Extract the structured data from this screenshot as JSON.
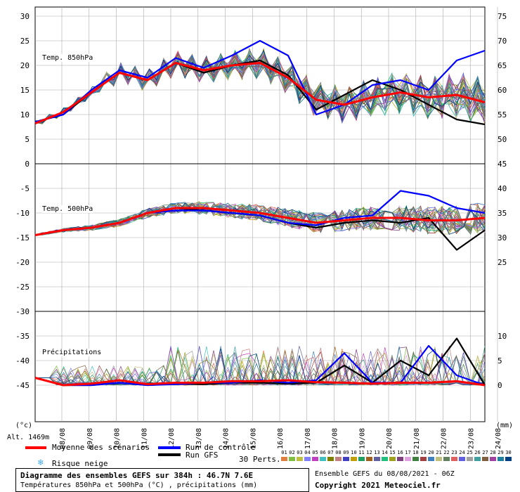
{
  "colors": {
    "mean": "#ff0000",
    "control": "#0000ff",
    "gfs": "#000000",
    "grid": "#aaaaaa",
    "snow": "#44aaee"
  },
  "legend": {
    "mean_label": "Moyenne des scénarios",
    "control_label": "Run de contrôle",
    "gfs_label": "Run GFS",
    "snow_label": "Risque neige",
    "perts_label": "30 Perts.",
    "altitude_label": "Alt. 1469m",
    "unit_left": "(°c)",
    "unit_right": "(mm)",
    "member_numbers": [
      "01",
      "02",
      "03",
      "04",
      "05",
      "06",
      "07",
      "08",
      "09",
      "10",
      "11",
      "12",
      "13",
      "14",
      "15",
      "16",
      "17",
      "18",
      "19",
      "20",
      "21",
      "22",
      "23",
      "24",
      "25",
      "26",
      "27",
      "28",
      "29",
      "30"
    ],
    "member_colors": [
      "#e08040",
      "#80c040",
      "#c0c040",
      "#8080ff",
      "#c040c0",
      "#40c0c0",
      "#808000",
      "#c08080",
      "#4040c0",
      "#c0a000",
      "#20a060",
      "#a06020",
      "#6060a0",
      "#20c080",
      "#a0a020",
      "#804080",
      "#e0a0e0",
      "#408040",
      "#a04040",
      "#4080c0",
      "#c0c080",
      "#608060",
      "#e06060",
      "#6060e0",
      "#a0a0a0",
      "#40a0a0",
      "#806040",
      "#a040a0",
      "#2080a0",
      "#004080"
    ]
  },
  "footer": {
    "title": "Diagramme des ensembles GEFS sur 384h : 46.7N 7.6E",
    "subtitle": "Températures 850hPa et 500hPa (°C) , précipitations (mm)",
    "run": "Ensemble GEFS du 08/08/2021 - 06Z",
    "copyright": "Copyright 2021 Meteociel.fr"
  },
  "chart_data": [
    {
      "type": "line",
      "title": "Temp. 850hPa",
      "ylabel": "°C",
      "ylim": [
        0,
        30
      ],
      "y_ticks": [
        0,
        5,
        10,
        15,
        20,
        25,
        30
      ],
      "right_ticks": [
        45,
        50,
        55,
        60,
        65,
        70,
        75
      ],
      "x": [
        "08/08",
        "09/08",
        "10/08",
        "11/08",
        "12/08",
        "13/08",
        "14/08",
        "15/08",
        "16/08",
        "17/08",
        "18/08",
        "19/08",
        "20/08",
        "21/08",
        "22/08",
        "23/08",
        "24/08"
      ],
      "series": [
        {
          "role": "mean",
          "values": [
            8.2,
            10.5,
            14.5,
            18.5,
            17.0,
            20.5,
            19.0,
            20.0,
            20.5,
            17.5,
            13.0,
            12.0,
            13.5,
            14.5,
            13.5,
            14.0,
            12.5
          ]
        },
        {
          "role": "control",
          "values": [
            8.5,
            10.0,
            15.0,
            19.0,
            17.5,
            21.5,
            19.5,
            22.0,
            25.0,
            22.0,
            10.0,
            12.0,
            16.0,
            17.0,
            15.0,
            21.0,
            23.0
          ]
        },
        {
          "role": "gfs",
          "values": [
            8.5,
            10.0,
            14.5,
            18.5,
            17.0,
            20.5,
            18.5,
            20.0,
            21.0,
            18.0,
            11.0,
            14.0,
            17.0,
            15.0,
            12.0,
            9.0,
            8.0
          ]
        }
      ]
    },
    {
      "type": "line",
      "title": "Temp. 500hPa",
      "ylabel": "°C",
      "ylim": [
        -25,
        0
      ],
      "y_ticks": [
        -5,
        -10,
        -15,
        -20,
        -25
      ],
      "right_ticks": [
        40,
        35,
        30,
        25
      ],
      "x": [
        "08/08",
        "09/08",
        "10/08",
        "11/08",
        "12/08",
        "13/08",
        "14/08",
        "15/08",
        "16/08",
        "17/08",
        "18/08",
        "19/08",
        "20/08",
        "21/08",
        "22/08",
        "23/08",
        "24/08"
      ],
      "series": [
        {
          "role": "mean",
          "values": [
            -14.5,
            -13.5,
            -13.0,
            -12.0,
            -10.0,
            -9.0,
            -9.0,
            -9.5,
            -10.0,
            -11.0,
            -12.0,
            -11.5,
            -11.0,
            -11.0,
            -11.5,
            -11.5,
            -11.0
          ]
        },
        {
          "role": "control",
          "values": [
            -14.5,
            -13.5,
            -13.0,
            -12.0,
            -10.0,
            -9.5,
            -9.5,
            -10.0,
            -10.5,
            -12.0,
            -12.5,
            -11.0,
            -10.5,
            -5.5,
            -6.5,
            -9.0,
            -10.0
          ]
        },
        {
          "role": "gfs",
          "values": [
            -14.5,
            -13.5,
            -13.0,
            -12.0,
            -10.0,
            -9.0,
            -9.5,
            -10.0,
            -10.5,
            -12.0,
            -13.0,
            -12.0,
            -11.5,
            -12.0,
            -11.0,
            -17.5,
            -13.5
          ]
        }
      ]
    },
    {
      "type": "line",
      "title": "Précipitations",
      "ylabel": "mm",
      "ylim": [
        0,
        10
      ],
      "y_ticks": [
        -35,
        -40,
        -45
      ],
      "right_ticks": [
        10,
        5,
        0
      ],
      "x": [
        "08/08",
        "09/08",
        "10/08",
        "11/08",
        "12/08",
        "13/08",
        "14/08",
        "15/08",
        "16/08",
        "17/08",
        "18/08",
        "19/08",
        "20/08",
        "21/08",
        "22/08",
        "23/08",
        "24/08"
      ],
      "series": [
        {
          "role": "mean",
          "values": [
            1.5,
            0.0,
            0.3,
            1.0,
            0.2,
            0.5,
            0.5,
            0.8,
            0.8,
            1.0,
            0.6,
            0.5,
            0.3,
            0.5,
            0.5,
            0.8,
            0.0
          ]
        },
        {
          "role": "control",
          "values": [
            1.5,
            0.0,
            0.0,
            0.5,
            0.0,
            0.2,
            0.5,
            0.5,
            1.0,
            0.5,
            1.0,
            6.5,
            0.5,
            0.5,
            8.0,
            2.0,
            0.0
          ]
        },
        {
          "role": "gfs",
          "values": [
            1.5,
            0.0,
            0.0,
            0.5,
            0.0,
            0.3,
            0.2,
            0.5,
            0.5,
            0.3,
            0.5,
            4.0,
            0.5,
            5.0,
            2.0,
            9.5,
            0.0
          ]
        }
      ]
    }
  ]
}
